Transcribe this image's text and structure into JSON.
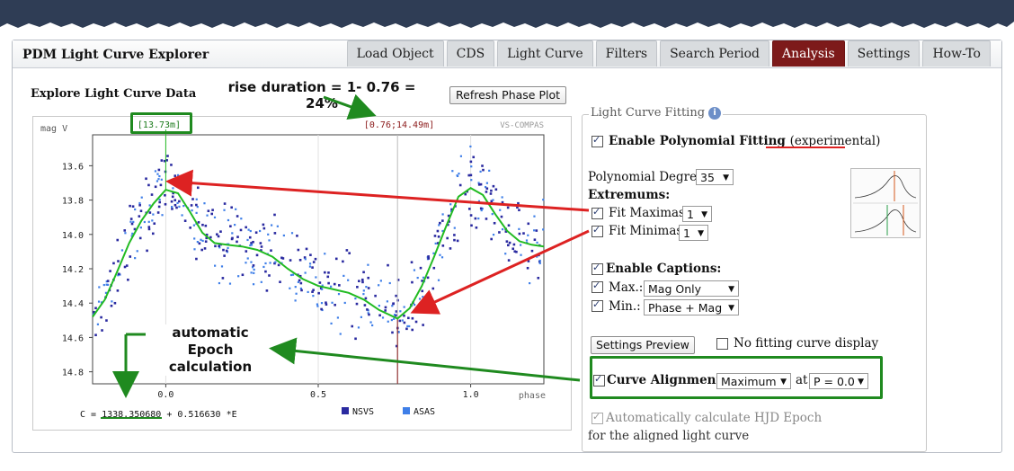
{
  "header": {
    "app_title": "PDM Light Curve Explorer",
    "tabs": [
      {
        "label": "Load Object",
        "active": false
      },
      {
        "label": "CDS",
        "active": false
      },
      {
        "label": "Light Curve",
        "active": false
      },
      {
        "label": "Filters",
        "active": false
      },
      {
        "label": "Search Period",
        "active": false
      },
      {
        "label": "Analysis",
        "active": true
      },
      {
        "label": "Settings",
        "active": false
      },
      {
        "label": "How-To",
        "active": false
      }
    ]
  },
  "main": {
    "section_title": "Explore Light Curve Data",
    "refresh_button": "Refresh Phase Plot"
  },
  "chart_data": {
    "type": "scatter",
    "ylabel": "mag V",
    "xlabel": "phase",
    "watermark": "VS-COMPAS",
    "cursor_left": "[13.73m]",
    "cursor_right": "[0.76;14.49m]",
    "y_ticks": [
      "13.6",
      "13.8",
      "14.0",
      "14.2",
      "14.4",
      "14.6",
      "14.8"
    ],
    "x_ticks": [
      "0.0",
      "0.5",
      "1.0"
    ],
    "ylim": [
      13.42,
      14.87
    ],
    "xlim": [
      -0.24,
      1.24
    ],
    "y_inverted": true,
    "formula_prefix": "C = ",
    "formula_epoch": "1338.350680",
    "formula_suffix": " + 0.516630 *E",
    "series": [
      {
        "name": "NSVS",
        "color": "#2a2aa0"
      },
      {
        "name": "ASAS",
        "color": "#3f7fe8"
      }
    ],
    "fit_curve_color": "#22bb22",
    "fit_curve": [
      [
        -0.24,
        14.48
      ],
      [
        -0.2,
        14.38
      ],
      [
        -0.16,
        14.22
      ],
      [
        -0.12,
        14.05
      ],
      [
        -0.08,
        13.92
      ],
      [
        -0.04,
        13.82
      ],
      [
        0.0,
        13.74
      ],
      [
        0.04,
        13.76
      ],
      [
        0.08,
        13.87
      ],
      [
        0.12,
        13.99
      ],
      [
        0.16,
        14.05
      ],
      [
        0.2,
        14.06
      ],
      [
        0.25,
        14.07
      ],
      [
        0.3,
        14.09
      ],
      [
        0.35,
        14.13
      ],
      [
        0.4,
        14.2
      ],
      [
        0.45,
        14.26
      ],
      [
        0.5,
        14.3
      ],
      [
        0.55,
        14.32
      ],
      [
        0.6,
        14.34
      ],
      [
        0.65,
        14.38
      ],
      [
        0.7,
        14.44
      ],
      [
        0.76,
        14.49
      ],
      [
        0.8,
        14.43
      ],
      [
        0.84,
        14.3
      ],
      [
        0.88,
        14.13
      ],
      [
        0.92,
        13.95
      ],
      [
        0.96,
        13.78
      ],
      [
        1.0,
        13.73
      ],
      [
        1.04,
        13.77
      ],
      [
        1.08,
        13.88
      ],
      [
        1.12,
        13.98
      ],
      [
        1.16,
        14.04
      ],
      [
        1.2,
        14.06
      ],
      [
        1.24,
        14.07
      ]
    ],
    "cursor_phases": [
      0.0,
      0.76
    ]
  },
  "annotations": {
    "rise_duration": "rise duration = 1- 0.76 = 24%",
    "auto_epoch": "automatic Epoch calculation"
  },
  "fitting": {
    "legend": "Light Curve Fitting",
    "enable_poly_label": "Enable Polynomial Fitting",
    "experimental": "(experimental)",
    "degree_label": "Polynomial Degree:",
    "degree_value": "35",
    "extremums_label": "Extremums:",
    "fit_max_label": "Fit Maximas:",
    "fit_max_value": "1",
    "fit_min_label": "Fit Minimas:",
    "fit_min_value": "1",
    "enable_captions_label": "Enable Captions:",
    "max_label": "Max.:",
    "max_value": "Mag Only",
    "min_label": "Min.:",
    "min_value": "Phase + Mag",
    "settings_preview": "Settings Preview",
    "no_fit_label": "No fitting curve display",
    "curve_alignment_label": "Curve Alignment:",
    "alignment_value": "Maximum",
    "at_label": "at",
    "phase_value": "P = 0.0",
    "auto_hjd_label": "Automatically calculate HJD Epoch",
    "auto_hjd_label2": "for the aligned light curve"
  }
}
